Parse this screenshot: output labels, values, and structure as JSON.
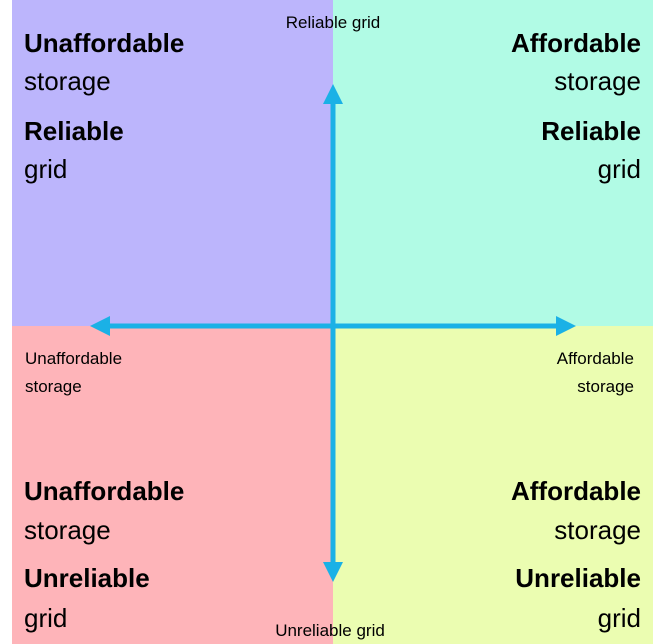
{
  "quadrants": [
    {
      "lines": [
        "Unaffordable",
        "storage",
        "Reliable",
        "grid"
      ]
    },
    {
      "lines": [
        "Affordable",
        "storage",
        "Reliable",
        "grid"
      ]
    },
    {
      "lines": [
        "Unaffordable",
        "storage",
        "Unreliable",
        "grid"
      ]
    },
    {
      "lines": [
        "Affordable",
        "storage",
        "Unreliable",
        "grid"
      ]
    }
  ],
  "axes": {
    "top": "Reliable grid",
    "bottom": "Unreliable grid",
    "left": [
      "Unaffordable",
      "storage"
    ],
    "right": [
      "Affordable",
      "storage"
    ]
  }
}
